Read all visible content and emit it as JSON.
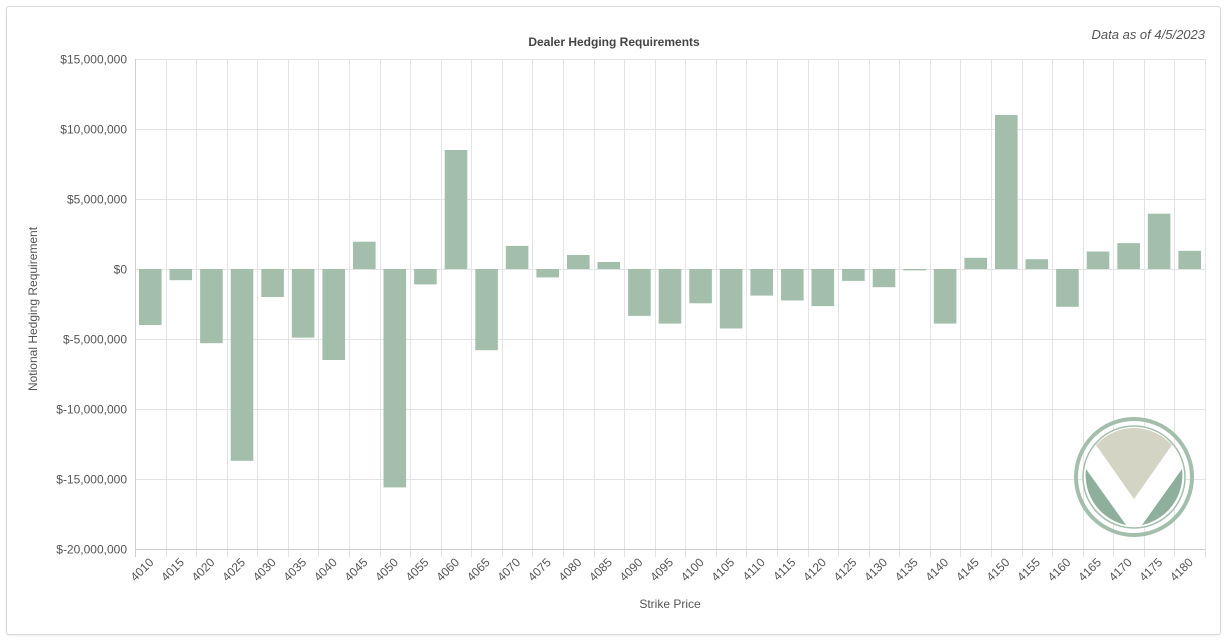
{
  "colors": {
    "bar": "#a3bfac",
    "grid": "#e3e3e3",
    "text": "#555555",
    "logo_ring": "#a3bfac",
    "logo_tan": "#d3d4c4",
    "logo_green": "#8daf9c"
  },
  "logo": {
    "icon": "brand-v-logo-icon"
  },
  "chart_data": {
    "type": "bar",
    "title": "Dealer Hedging Requirements",
    "subtitle": "Data as of 4/5/2023",
    "xlabel": "Strike Price",
    "ylabel": "Notional Hedging Requirement",
    "ylim": [
      -20000000,
      15000000
    ],
    "yticks": [
      15000000,
      10000000,
      5000000,
      0,
      -5000000,
      -10000000,
      -15000000,
      -20000000
    ],
    "ytick_labels": [
      "$15,000,000",
      "$10,000,000",
      "$5,000,000",
      "$0",
      "$-5,000,000",
      "$-10,000,000",
      "$-15,000,000",
      "$-20,000,000"
    ],
    "grid": true,
    "legend": "none",
    "categories": [
      "4010",
      "4015",
      "4020",
      "4025",
      "4030",
      "4035",
      "4040",
      "4045",
      "4050",
      "4055",
      "4060",
      "4065",
      "4070",
      "4075",
      "4080",
      "4085",
      "4090",
      "4095",
      "4100",
      "4105",
      "4110",
      "4115",
      "4120",
      "4125",
      "4130",
      "4135",
      "4140",
      "4145",
      "4150",
      "4155",
      "4160",
      "4165",
      "4170",
      "4175",
      "4180"
    ],
    "values": [
      -4000000,
      -800000,
      -5300000,
      -13700000,
      -2000000,
      -4900000,
      -6500000,
      1950000,
      -15600000,
      -1100000,
      8500000,
      -5800000,
      1650000,
      -600000,
      1000000,
      500000,
      -3350000,
      -3900000,
      -2450000,
      -4250000,
      -1900000,
      -2250000,
      -2650000,
      -850000,
      -1300000,
      -100000,
      -3900000,
      800000,
      11000000,
      700000,
      -2700000,
      1250000,
      1850000,
      3950000,
      1300000
    ]
  }
}
